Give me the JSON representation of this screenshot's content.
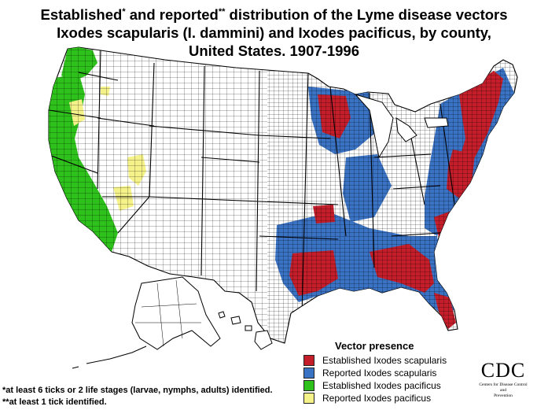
{
  "title": {
    "line1a": "Established",
    "line1b": " and reported",
    "line1c": " distribution of the Lyme disease vectors",
    "mark1": "*",
    "mark2": "**",
    "line2": "Ixodes scapularis (I. dammini) and Ixodes pacificus, by county,",
    "line3": "United States. 1907-1996"
  },
  "legend": {
    "heading": "Vector presence",
    "items": [
      {
        "label": "Established Ixodes scapularis",
        "color": "#c41e2a"
      },
      {
        "label": "Reported Ixodes scapularis",
        "color": "#3a72c4"
      },
      {
        "label": "Established Ixodes pacificus",
        "color": "#2fc11b"
      },
      {
        "label": "Reported Ixodes pacificus",
        "color": "#f5f28a"
      }
    ]
  },
  "footnotes": [
    {
      "mark": "*",
      "text": "at least 6 ticks or 2 life stages (larvae, nymphs, adults) identified."
    },
    {
      "mark": "**",
      "text": "at least 1 tick identified."
    }
  ],
  "logo": {
    "name": "CDC",
    "subtitle_lines": [
      "Centers for Disease Control",
      "and",
      "Prevention"
    ]
  },
  "colors": {
    "land": "#ffffff",
    "county_border": "#000000",
    "established_scapularis": "#c41e2a",
    "reported_scapularis": "#3a72c4",
    "established_pacificus": "#2fc11b",
    "reported_pacificus": "#f5f28a"
  }
}
